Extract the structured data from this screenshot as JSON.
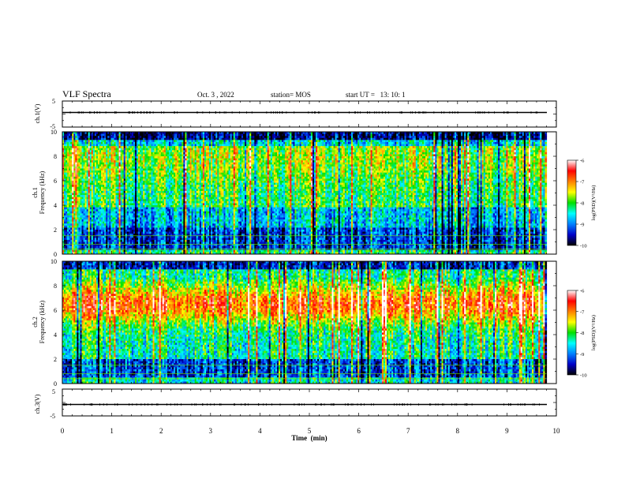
{
  "header": {
    "title": "VLF Spectra",
    "date": "Oct. 3  , 2022",
    "station": "station= MOS",
    "start_ut": "start UT =   13: 10: 1"
  },
  "chart_data": [
    {
      "type": "line",
      "name": "ch1-waveform",
      "ylabel": "ch.1(V)",
      "ylim": [
        -5,
        5
      ],
      "yticks": [
        "5",
        "-5"
      ],
      "xlim": [
        0,
        10
      ],
      "baseline_value": 0
    },
    {
      "type": "heatmap",
      "name": "ch1-spectrogram",
      "ylabel_line1": "ch.1",
      "ylabel_line2": "Frequency (kHz)",
      "ylim": [
        0,
        10
      ],
      "yticks": [
        "0",
        "2",
        "4",
        "6",
        "8",
        "10"
      ],
      "xlim": [
        0,
        10
      ],
      "data_end_min": 9.8,
      "colorbar": {
        "label": "log(PSD)(V²/Hz)",
        "range": [
          -10,
          -6
        ],
        "ticks": [
          "-6",
          "-7",
          "-8",
          "-9",
          "-10"
        ],
        "colors": [
          "#000000",
          "#0000c8",
          "#0080ff",
          "#00ffff",
          "#00e000",
          "#ffff00",
          "#ff8000",
          "#ff0000",
          "#ffffff"
        ]
      }
    },
    {
      "type": "heatmap",
      "name": "ch2-spectrogram",
      "ylabel_line1": "ch.2",
      "ylabel_line2": "Frequency (kHz)",
      "ylim": [
        0,
        10
      ],
      "yticks": [
        "0",
        "2",
        "4",
        "6",
        "8",
        "10"
      ],
      "xlim": [
        0,
        10
      ],
      "data_end_min": 9.8,
      "colorbar": {
        "label": "log(PSD)(V²/Hz)",
        "range": [
          -10,
          -6
        ],
        "ticks": [
          "-6",
          "-7",
          "-8",
          "-9",
          "-10"
        ],
        "colors": [
          "#000000",
          "#0000c8",
          "#0080ff",
          "#00ffff",
          "#00e000",
          "#ffff00",
          "#ff8000",
          "#ff0000",
          "#ffffff"
        ]
      }
    },
    {
      "type": "line",
      "name": "ch3-waveform",
      "ylabel": "ch.3(V)",
      "ylim": [
        -5,
        5
      ],
      "yticks": [
        "5",
        "-5"
      ],
      "xlim": [
        0,
        10
      ],
      "baseline_value": 0
    }
  ],
  "x_axis": {
    "label": "Time  (min)",
    "ticks": [
      "0",
      "1",
      "2",
      "3",
      "4",
      "5",
      "6",
      "7",
      "8",
      "9",
      "10"
    ]
  }
}
